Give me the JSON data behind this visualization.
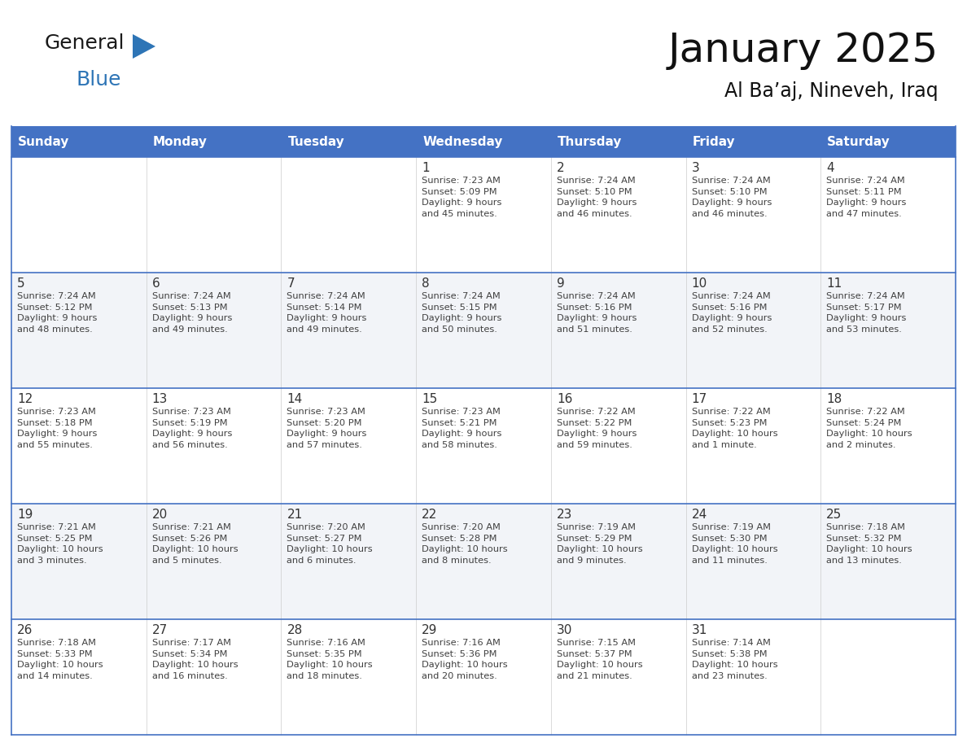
{
  "title": "January 2025",
  "subtitle": "Al Ba’aj, Nineveh, Iraq",
  "header_bg": "#4472C4",
  "header_text_color": "#FFFFFF",
  "border_color": "#4472C4",
  "text_color": "#404040",
  "day_num_color": "#333333",
  "logo_black": "#1a1a1a",
  "logo_blue": "#2E75B6",
  "days_of_week": [
    "Sunday",
    "Monday",
    "Tuesday",
    "Wednesday",
    "Thursday",
    "Friday",
    "Saturday"
  ],
  "weeks": [
    [
      {
        "day": "",
        "info": ""
      },
      {
        "day": "",
        "info": ""
      },
      {
        "day": "",
        "info": ""
      },
      {
        "day": "1",
        "info": "Sunrise: 7:23 AM\nSunset: 5:09 PM\nDaylight: 9 hours\nand 45 minutes."
      },
      {
        "day": "2",
        "info": "Sunrise: 7:24 AM\nSunset: 5:10 PM\nDaylight: 9 hours\nand 46 minutes."
      },
      {
        "day": "3",
        "info": "Sunrise: 7:24 AM\nSunset: 5:10 PM\nDaylight: 9 hours\nand 46 minutes."
      },
      {
        "day": "4",
        "info": "Sunrise: 7:24 AM\nSunset: 5:11 PM\nDaylight: 9 hours\nand 47 minutes."
      }
    ],
    [
      {
        "day": "5",
        "info": "Sunrise: 7:24 AM\nSunset: 5:12 PM\nDaylight: 9 hours\nand 48 minutes."
      },
      {
        "day": "6",
        "info": "Sunrise: 7:24 AM\nSunset: 5:13 PM\nDaylight: 9 hours\nand 49 minutes."
      },
      {
        "day": "7",
        "info": "Sunrise: 7:24 AM\nSunset: 5:14 PM\nDaylight: 9 hours\nand 49 minutes."
      },
      {
        "day": "8",
        "info": "Sunrise: 7:24 AM\nSunset: 5:15 PM\nDaylight: 9 hours\nand 50 minutes."
      },
      {
        "day": "9",
        "info": "Sunrise: 7:24 AM\nSunset: 5:16 PM\nDaylight: 9 hours\nand 51 minutes."
      },
      {
        "day": "10",
        "info": "Sunrise: 7:24 AM\nSunset: 5:16 PM\nDaylight: 9 hours\nand 52 minutes."
      },
      {
        "day": "11",
        "info": "Sunrise: 7:24 AM\nSunset: 5:17 PM\nDaylight: 9 hours\nand 53 minutes."
      }
    ],
    [
      {
        "day": "12",
        "info": "Sunrise: 7:23 AM\nSunset: 5:18 PM\nDaylight: 9 hours\nand 55 minutes."
      },
      {
        "day": "13",
        "info": "Sunrise: 7:23 AM\nSunset: 5:19 PM\nDaylight: 9 hours\nand 56 minutes."
      },
      {
        "day": "14",
        "info": "Sunrise: 7:23 AM\nSunset: 5:20 PM\nDaylight: 9 hours\nand 57 minutes."
      },
      {
        "day": "15",
        "info": "Sunrise: 7:23 AM\nSunset: 5:21 PM\nDaylight: 9 hours\nand 58 minutes."
      },
      {
        "day": "16",
        "info": "Sunrise: 7:22 AM\nSunset: 5:22 PM\nDaylight: 9 hours\nand 59 minutes."
      },
      {
        "day": "17",
        "info": "Sunrise: 7:22 AM\nSunset: 5:23 PM\nDaylight: 10 hours\nand 1 minute."
      },
      {
        "day": "18",
        "info": "Sunrise: 7:22 AM\nSunset: 5:24 PM\nDaylight: 10 hours\nand 2 minutes."
      }
    ],
    [
      {
        "day": "19",
        "info": "Sunrise: 7:21 AM\nSunset: 5:25 PM\nDaylight: 10 hours\nand 3 minutes."
      },
      {
        "day": "20",
        "info": "Sunrise: 7:21 AM\nSunset: 5:26 PM\nDaylight: 10 hours\nand 5 minutes."
      },
      {
        "day": "21",
        "info": "Sunrise: 7:20 AM\nSunset: 5:27 PM\nDaylight: 10 hours\nand 6 minutes."
      },
      {
        "day": "22",
        "info": "Sunrise: 7:20 AM\nSunset: 5:28 PM\nDaylight: 10 hours\nand 8 minutes."
      },
      {
        "day": "23",
        "info": "Sunrise: 7:19 AM\nSunset: 5:29 PM\nDaylight: 10 hours\nand 9 minutes."
      },
      {
        "day": "24",
        "info": "Sunrise: 7:19 AM\nSunset: 5:30 PM\nDaylight: 10 hours\nand 11 minutes."
      },
      {
        "day": "25",
        "info": "Sunrise: 7:18 AM\nSunset: 5:32 PM\nDaylight: 10 hours\nand 13 minutes."
      }
    ],
    [
      {
        "day": "26",
        "info": "Sunrise: 7:18 AM\nSunset: 5:33 PM\nDaylight: 10 hours\nand 14 minutes."
      },
      {
        "day": "27",
        "info": "Sunrise: 7:17 AM\nSunset: 5:34 PM\nDaylight: 10 hours\nand 16 minutes."
      },
      {
        "day": "28",
        "info": "Sunrise: 7:16 AM\nSunset: 5:35 PM\nDaylight: 10 hours\nand 18 minutes."
      },
      {
        "day": "29",
        "info": "Sunrise: 7:16 AM\nSunset: 5:36 PM\nDaylight: 10 hours\nand 20 minutes."
      },
      {
        "day": "30",
        "info": "Sunrise: 7:15 AM\nSunset: 5:37 PM\nDaylight: 10 hours\nand 21 minutes."
      },
      {
        "day": "31",
        "info": "Sunrise: 7:14 AM\nSunset: 5:38 PM\nDaylight: 10 hours\nand 23 minutes."
      },
      {
        "day": "",
        "info": ""
      }
    ]
  ]
}
